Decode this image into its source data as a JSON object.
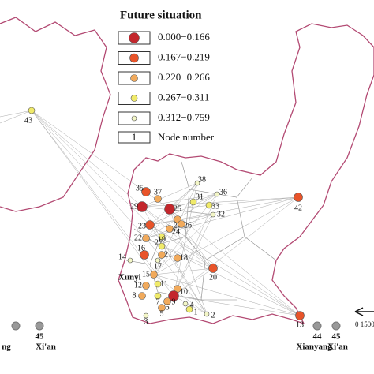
{
  "legend": {
    "title": "Future situation",
    "items": [
      {
        "label": "0.000−0.166",
        "color": "#c3262c"
      },
      {
        "label": "0.167−0.219",
        "color": "#e8542a"
      },
      {
        "label": "0.220−0.266",
        "color": "#f1aa5c"
      },
      {
        "label": "0.267−0.311",
        "color": "#f0ea6a"
      },
      {
        "label": "0.312−0.759",
        "color": "#f3f6c6"
      }
    ],
    "sample": "1",
    "sample_label": "Node number"
  },
  "nodes": [
    {
      "label": "43",
      "color": "#f0ea6a"
    },
    {
      "label": "38",
      "color": "#f3f6c6"
    },
    {
      "label": "35",
      "color": "#e8542a"
    },
    {
      "label": "36",
      "color": "#f3f6c6"
    },
    {
      "label": "31",
      "color": "#f0ea6a"
    },
    {
      "label": "29",
      "color": "#c3262c"
    },
    {
      "label": "25",
      "color": "#c3262c"
    },
    {
      "label": "33",
      "color": "#f0ea6a"
    },
    {
      "label": "37",
      "color": "#f1aa5c"
    },
    {
      "label": "32",
      "color": "#f3f6c6"
    },
    {
      "label": "28",
      "color": "#f1aa5c"
    },
    {
      "label": "23",
      "color": "#e8542a"
    },
    {
      "label": "24",
      "color": "#f1aa5c"
    },
    {
      "label": "26",
      "color": "#f1aa5c"
    },
    {
      "label": "27",
      "color": "#f0ea6a"
    },
    {
      "label": "42",
      "color": "#e8542a"
    },
    {
      "label": "22",
      "color": "#f1aa5c"
    },
    {
      "label": "19",
      "color": "#f0ea6a"
    },
    {
      "label": "21",
      "color": "#f1aa5c"
    },
    {
      "label": "14",
      "color": "#f3f6c6"
    },
    {
      "label": "16",
      "color": "#e8542a"
    },
    {
      "label": "17",
      "color": "#f3f6c6"
    },
    {
      "label": "18",
      "color": "#f1aa5c"
    },
    {
      "label": "20",
      "color": "#e8542a"
    },
    {
      "label": "15",
      "color": "#f1aa5c"
    },
    {
      "label": "11",
      "color": "#f0ea6a"
    },
    {
      "label": "12",
      "color": "#f1aa5c"
    },
    {
      "label": "10",
      "color": "#f1aa5c"
    },
    {
      "label": "9",
      "color": "#c3262c"
    },
    {
      "label": "8",
      "color": "#f1aa5c"
    },
    {
      "label": "7",
      "color": "#f0ea6a"
    },
    {
      "label": "6",
      "color": "#f1aa5c"
    },
    {
      "label": "4",
      "color": "#f3f6c6"
    },
    {
      "label": "1",
      "color": "#f0ea6a"
    },
    {
      "label": "5",
      "color": "#f1aa5c"
    },
    {
      "label": "3",
      "color": "#f3f6c6"
    },
    {
      "label": "2",
      "color": "#f3f6c6"
    },
    {
      "label": "13",
      "color": "#e8542a"
    }
  ],
  "places": [
    {
      "label": "Xunyi"
    },
    {
      "label": "Xianyang"
    },
    {
      "label": "44"
    },
    {
      "label": "45"
    },
    {
      "label": "Xi'an"
    },
    {
      "label": "ng"
    },
    {
      "label": "45"
    },
    {
      "label": "Xi'an"
    }
  ],
  "scale": "0 1500"
}
